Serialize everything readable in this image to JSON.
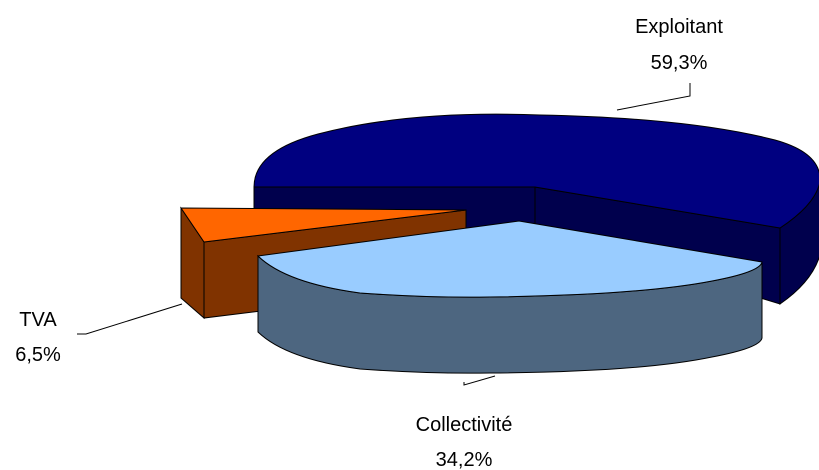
{
  "chart_data": {
    "type": "pie",
    "style": "3d-exploded",
    "slices": [
      {
        "category": "Exploitant",
        "value_label": "59,3%",
        "value": 59.3,
        "top_color": "#000080",
        "side_color": "#00004D"
      },
      {
        "category": "Collectivité",
        "value_label": "34,2%",
        "value": 34.2,
        "top_color": "#99CCFF",
        "side_color": "#4D6680"
      },
      {
        "category": "TVA",
        "value_label": "6,5%",
        "value": 6.5,
        "top_color": "#FF6600",
        "side_color": "#803300"
      }
    ],
    "legend": "none",
    "grid": false
  }
}
